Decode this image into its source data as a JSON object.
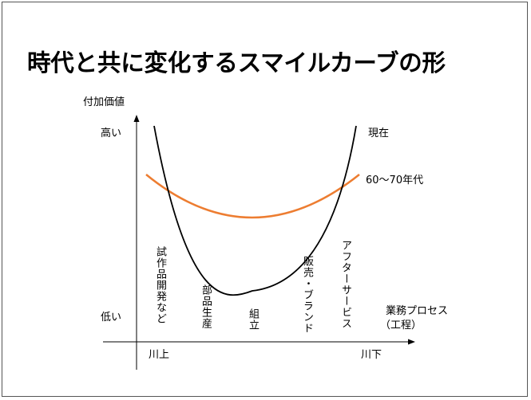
{
  "title": "時代と共に変化するスマイルカーブの形",
  "axes": {
    "y_label": "付加価値",
    "y_high": "高い",
    "y_low": "低い",
    "x_label_line1": "業務プロセス",
    "x_label_line2": "（工程）",
    "x_left": "川上",
    "x_right": "川下"
  },
  "curves": [
    {
      "name": "現在",
      "color": "#000000"
    },
    {
      "name": "60～70年代",
      "color": "#ed7d31"
    }
  ],
  "stages": [
    "試作品開発など",
    "部品生産",
    "組立",
    "販売・ブランド",
    "アフターサービス"
  ]
}
